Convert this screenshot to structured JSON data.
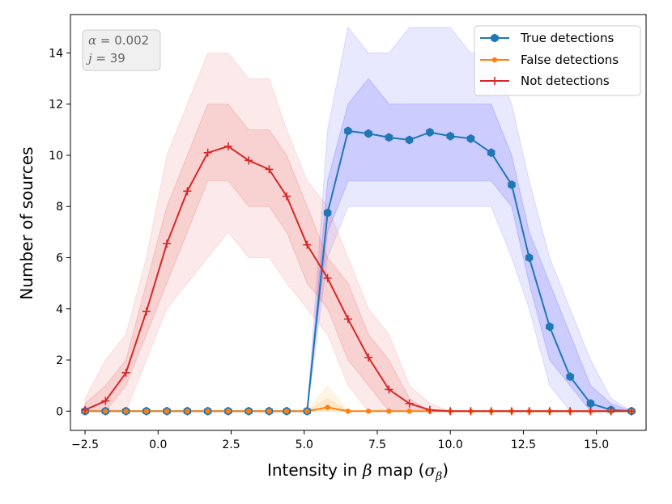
{
  "chart_data": {
    "type": "line",
    "xlabel_parts": [
      "Intensity in ",
      "β",
      " map (",
      "σ",
      "β",
      ")"
    ],
    "ylabel": "Number of sources",
    "xlim": [
      -3.0,
      16.7
    ],
    "ylim": [
      -0.75,
      15.5
    ],
    "xticks": [
      -2.5,
      0.0,
      2.5,
      5.0,
      7.5,
      10.0,
      12.5,
      15.0
    ],
    "xtick_labels": [
      "−2.5",
      "0.0",
      "2.5",
      "5.0",
      "7.5",
      "10.0",
      "12.5",
      "15.0"
    ],
    "yticks": [
      0,
      2,
      4,
      6,
      8,
      10,
      12,
      14
    ],
    "ytick_labels": [
      "0",
      "2",
      "4",
      "6",
      "8",
      "10",
      "12",
      "14"
    ],
    "annotation": {
      "alpha_sym": "α",
      "alpha_value": " = 0.002",
      "j_sym": "j",
      "j_value": " = 39"
    },
    "legend_position": "top-right",
    "series": [
      {
        "name": "True detections",
        "color": "#1f77b4",
        "band_color": "#4040ff",
        "marker": "hexagon",
        "x": [
          -2.5,
          -1.8,
          -1.1,
          -0.4,
          0.3,
          1.0,
          1.7,
          2.4,
          3.1,
          3.8,
          4.4,
          5.1,
          5.8,
          6.5,
          7.2,
          7.9,
          8.6,
          9.3,
          10.0,
          10.7,
          11.4,
          12.1,
          12.7,
          13.4,
          14.1,
          14.8,
          15.5,
          16.2
        ],
        "values": [
          0,
          0,
          0,
          0,
          0,
          0,
          0,
          0,
          0,
          0,
          0,
          0,
          7.75,
          10.95,
          10.85,
          10.7,
          10.6,
          10.9,
          10.75,
          10.65,
          10.1,
          8.85,
          6.0,
          3.3,
          1.35,
          0.3,
          0.05,
          0.0
        ],
        "band_inner_low": [
          0,
          0,
          0,
          0,
          0,
          0,
          0,
          0,
          0,
          0,
          0,
          0,
          7,
          9,
          9,
          9,
          9,
          9,
          9,
          9,
          9,
          8,
          5,
          2,
          1,
          0,
          0,
          0
        ],
        "band_inner_high": [
          0,
          0,
          0,
          0,
          0,
          0,
          0,
          0,
          0,
          0,
          0,
          0,
          9,
          12,
          13,
          12,
          12,
          12,
          12,
          12,
          12,
          10,
          7,
          5,
          3,
          1,
          0.3,
          0
        ],
        "band_outer_low": [
          0,
          0,
          0,
          0,
          0,
          0,
          0,
          0,
          0,
          0,
          0,
          0,
          6,
          8,
          8,
          8,
          8,
          8,
          8,
          8,
          8,
          6,
          4,
          1,
          0,
          0,
          0,
          0
        ],
        "band_outer_high": [
          0,
          0,
          0,
          0,
          0,
          0,
          0,
          0,
          0,
          0,
          0,
          0,
          11,
          15,
          14,
          14,
          15,
          15,
          15,
          14,
          14,
          12,
          9,
          6,
          4,
          2,
          0.5,
          0
        ]
      },
      {
        "name": "False detections",
        "color": "#ff7f0e",
        "band_color": "#ffb030",
        "marker": "dot",
        "x": [
          -2.5,
          -1.8,
          -1.1,
          -0.4,
          0.3,
          1.0,
          1.7,
          2.4,
          3.1,
          3.8,
          4.4,
          5.1,
          5.8,
          6.5,
          7.2,
          7.9,
          8.6,
          9.3,
          10.0,
          10.7,
          11.4,
          12.1,
          12.7,
          13.4,
          14.1,
          14.8,
          15.5,
          16.2
        ],
        "values": [
          0,
          0,
          0,
          0,
          0,
          0,
          0,
          0,
          0,
          0,
          0,
          0,
          0.15,
          0,
          0,
          0,
          0,
          0,
          0,
          0,
          0,
          0,
          0,
          0,
          0,
          0,
          0,
          0
        ],
        "band_inner_low": [
          0,
          0,
          0,
          0,
          0,
          0,
          0,
          0,
          0,
          0,
          0,
          0,
          0,
          0,
          0,
          0,
          0,
          0,
          0,
          0,
          0,
          0,
          0,
          0,
          0,
          0,
          0,
          0
        ],
        "band_inner_high": [
          0,
          0,
          0,
          0,
          0,
          0,
          0,
          0,
          0,
          0,
          0,
          0,
          0.5,
          0,
          0,
          0,
          0,
          0,
          0,
          0,
          0,
          0,
          0,
          0,
          0,
          0,
          0,
          0
        ],
        "band_outer_low": [
          0,
          0,
          0,
          0,
          0,
          0,
          0,
          0,
          0,
          0,
          0,
          0,
          0,
          0,
          0,
          0,
          0,
          0,
          0,
          0,
          0,
          0,
          0,
          0,
          0,
          0,
          0,
          0
        ],
        "band_outer_high": [
          0,
          0,
          0,
          0,
          0,
          0,
          0,
          0,
          0,
          0,
          0,
          0,
          1,
          0,
          0,
          0,
          0,
          0,
          0,
          0,
          0,
          0,
          0,
          0,
          0,
          0,
          0,
          0
        ]
      },
      {
        "name": "Not detections",
        "color": "#d62728",
        "band_color": "#e85050",
        "marker": "plus",
        "x": [
          -2.5,
          -1.8,
          -1.1,
          -0.4,
          0.3,
          1.0,
          1.7,
          2.4,
          3.1,
          3.8,
          4.4,
          5.1,
          5.8,
          6.5,
          7.2,
          7.9,
          8.6,
          9.3,
          10.0,
          10.7,
          11.4,
          12.1,
          12.7,
          13.4,
          14.1,
          14.8,
          15.5,
          16.2
        ],
        "values": [
          0.05,
          0.4,
          1.5,
          3.9,
          6.55,
          8.6,
          10.1,
          10.35,
          9.8,
          9.45,
          8.4,
          6.5,
          5.2,
          3.6,
          2.1,
          0.85,
          0.3,
          0.05,
          0.0,
          0,
          0,
          0,
          0,
          0,
          0,
          0,
          0,
          0
        ],
        "band_inner_low": [
          0,
          0,
          1,
          3,
          5,
          7,
          9,
          9,
          8,
          8,
          7,
          5,
          4,
          2,
          1,
          0,
          0,
          0,
          0,
          0,
          0,
          0,
          0,
          0,
          0,
          0,
          0,
          0
        ],
        "band_inner_high": [
          0.3,
          1,
          2,
          5,
          8,
          10,
          12,
          12,
          11,
          11,
          10,
          8,
          6,
          5,
          3,
          2,
          0.5,
          0,
          0,
          0,
          0,
          0,
          0,
          0,
          0,
          0,
          0,
          0
        ],
        "band_outer_low": [
          0,
          0,
          0,
          2,
          4,
          5,
          6,
          7,
          6,
          6,
          5,
          4,
          3,
          1,
          0,
          0,
          0,
          0,
          0,
          0,
          0,
          0,
          0,
          0,
          0,
          0,
          0,
          0
        ],
        "band_outer_high": [
          0.5,
          2,
          3,
          6,
          10,
          12,
          14,
          14,
          13,
          13,
          11,
          9,
          8,
          6,
          4,
          3,
          1,
          0.3,
          0,
          0,
          0,
          0,
          0,
          0,
          0,
          0,
          0,
          0
        ]
      }
    ]
  }
}
